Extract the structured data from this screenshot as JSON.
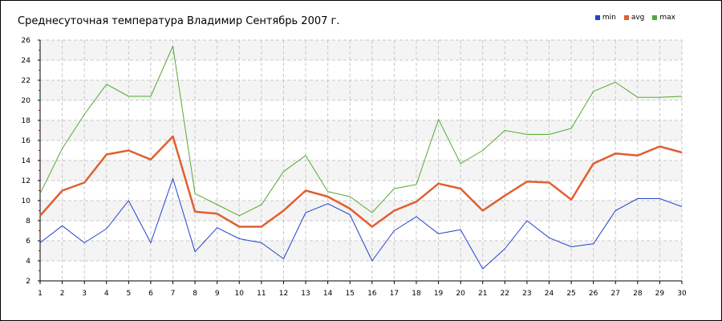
{
  "chart_data": {
    "type": "line",
    "title": "Среднесуточная температура Владимир  Сентябрь 2007 г.",
    "x": [
      1,
      2,
      3,
      4,
      5,
      6,
      7,
      8,
      9,
      10,
      11,
      12,
      13,
      14,
      15,
      16,
      17,
      18,
      19,
      20,
      21,
      22,
      23,
      24,
      25,
      26,
      27,
      28,
      29,
      30
    ],
    "x_ticks": [
      "1",
      "2",
      "3",
      "4",
      "5",
      "6",
      "7",
      "8",
      "9",
      "10",
      "11",
      "12",
      "13",
      "14",
      "15",
      "16",
      "17",
      "18",
      "19",
      "20",
      "21",
      "22",
      "23",
      "24",
      "25",
      "26",
      "27",
      "28",
      "29",
      "30"
    ],
    "y_ticks": [
      "2",
      "4",
      "6",
      "8",
      "10",
      "12",
      "14",
      "16",
      "18",
      "20",
      "22",
      "24",
      "26"
    ],
    "ylim": [
      2,
      26
    ],
    "grid": true,
    "legend_position": "top-right",
    "series": [
      {
        "name": "min",
        "color": "#2244cc",
        "stroke": 1,
        "values": [
          5.8,
          7.5,
          5.8,
          7.2,
          10.0,
          5.8,
          12.2,
          4.9,
          7.3,
          6.2,
          5.8,
          4.2,
          8.8,
          9.7,
          8.6,
          4.0,
          7.0,
          8.4,
          6.7,
          7.1,
          3.2,
          5.2,
          8.0,
          6.3,
          5.4,
          5.7,
          9.0,
          10.2,
          10.2,
          9.4
        ]
      },
      {
        "name": "avg",
        "color": "#e06030",
        "stroke": 2.5,
        "values": [
          8.5,
          11.0,
          11.8,
          14.6,
          15.0,
          14.1,
          16.4,
          8.9,
          8.7,
          7.4,
          7.4,
          9.0,
          11.0,
          10.4,
          9.2,
          7.4,
          9.0,
          9.9,
          11.7,
          11.2,
          9.0,
          10.5,
          11.9,
          11.8,
          10.1,
          13.7,
          14.7,
          14.5,
          15.4,
          14.8
        ]
      },
      {
        "name": "max",
        "color": "#55aa33",
        "stroke": 1,
        "values": [
          10.7,
          15.2,
          18.6,
          21.6,
          20.4,
          20.4,
          25.4,
          10.7,
          9.6,
          8.5,
          9.6,
          12.9,
          14.5,
          10.9,
          10.4,
          8.8,
          11.2,
          11.6,
          18.1,
          13.7,
          15.0,
          17.0,
          16.6,
          16.6,
          17.2,
          20.9,
          21.8,
          20.3,
          20.3,
          20.4
        ]
      }
    ]
  }
}
